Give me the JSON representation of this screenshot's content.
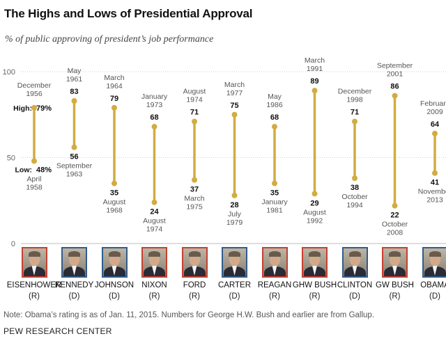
{
  "title": "The Highs and Lows of Presidential Approval",
  "subtitle": "% of public approving of president’s job performance",
  "note": "Note: Obama’s rating is as of Jan. 11, 2015. Numbers for George H.W. Bush and earlier are from Gallup.",
  "source": "PEW RESEARCH CENTER",
  "colors": {
    "bar": "#d2ac41",
    "republican": "#c7402f",
    "democrat": "#2f5d8e",
    "grid": "#cfcfcf",
    "axis": "#bdbdbd"
  },
  "chart_data": {
    "type": "range",
    "ylim": [
      0,
      100
    ],
    "y_ticks": [
      "0",
      "50",
      "100"
    ],
    "high_label": "High:",
    "low_label": "Low:",
    "grid": true,
    "presidents": [
      {
        "name": "EISENHOWER",
        "party": "(R)",
        "high": 79,
        "high_date": [
          "December",
          "1956"
        ],
        "low": 48,
        "low_date": [
          "April",
          "1958"
        ]
      },
      {
        "name": "KENNEDY",
        "party": "(D)",
        "high": 83,
        "high_date": [
          "May",
          "1961"
        ],
        "low": 56,
        "low_date": [
          "September",
          "1963"
        ]
      },
      {
        "name": "JOHNSON",
        "party": "(D)",
        "high": 79,
        "high_date": [
          "March",
          "1964"
        ],
        "low": 35,
        "low_date": [
          "August",
          "1968"
        ]
      },
      {
        "name": "NIXON",
        "party": "(R)",
        "high": 68,
        "high_date": [
          "January",
          "1973"
        ],
        "low": 24,
        "low_date": [
          "August",
          "1974"
        ]
      },
      {
        "name": "FORD",
        "party": "(R)",
        "high": 71,
        "high_date": [
          "August",
          "1974"
        ],
        "low": 37,
        "low_date": [
          "March",
          "1975"
        ]
      },
      {
        "name": "CARTER",
        "party": "(D)",
        "high": 75,
        "high_date": [
          "March",
          "1977"
        ],
        "low": 28,
        "low_date": [
          "July",
          "1979"
        ]
      },
      {
        "name": "REAGAN",
        "party": "(R)",
        "high": 68,
        "high_date": [
          "May",
          "1986"
        ],
        "low": 35,
        "low_date": [
          "January",
          "1981"
        ]
      },
      {
        "name": "GHW BUSH",
        "party": "(R)",
        "high": 89,
        "high_date": [
          "March",
          "1991"
        ],
        "low": 29,
        "low_date": [
          "August",
          "1992"
        ]
      },
      {
        "name": "CLINTON",
        "party": "(D)",
        "high": 71,
        "high_date": [
          "December",
          "1998"
        ],
        "low": 38,
        "low_date": [
          "October",
          "1994"
        ]
      },
      {
        "name": "GW BUSH",
        "party": "(R)",
        "high": 86,
        "high_date": [
          "September",
          "2001"
        ],
        "low": 22,
        "low_date": [
          "October",
          "2008"
        ]
      },
      {
        "name": "OBAMA",
        "party": "(D)",
        "high": 64,
        "high_date": [
          "February",
          "2009"
        ],
        "low": 41,
        "low_date": [
          "November",
          "2013"
        ]
      }
    ]
  }
}
